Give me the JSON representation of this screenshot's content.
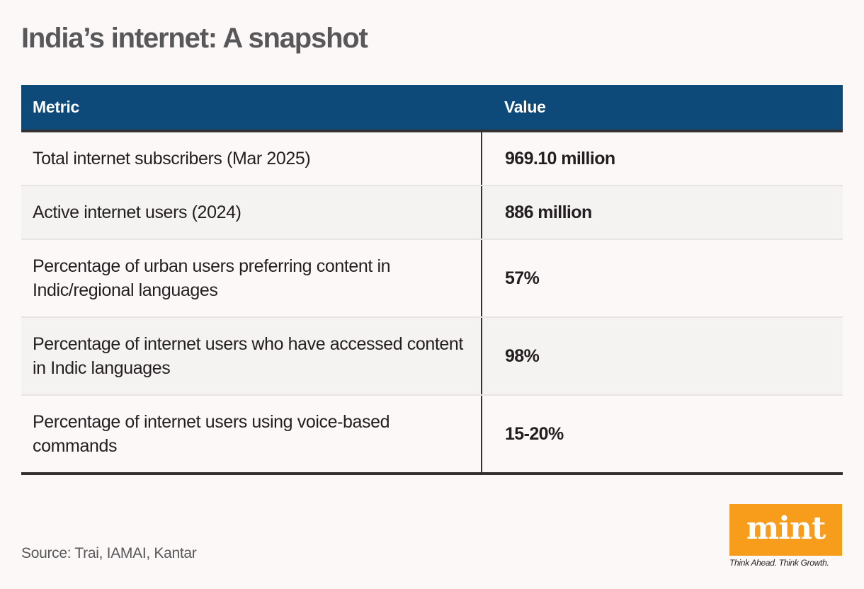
{
  "title": "India’s internet: A snapshot",
  "table": {
    "headers": {
      "metric": "Metric",
      "value": "Value"
    },
    "rows": [
      {
        "metric": "Total internet subscribers (Mar 2025)",
        "value": "969.10 million"
      },
      {
        "metric": "Active internet users (2024)",
        "value": "886 million"
      },
      {
        "metric": "Percentage of urban users preferring content in Indic/regional languages",
        "value": "57%"
      },
      {
        "metric": "Percentage of internet users who have accessed content in Indic languages",
        "value": "98%"
      },
      {
        "metric": "Percentage of internet users using voice-based commands",
        "value": "15-20%"
      }
    ]
  },
  "source": "Source: Trai, IAMAI, Kantar",
  "logo": {
    "word": "mint",
    "tagline": "Think Ahead. Think Growth.",
    "color": "#f89c1c"
  },
  "colors": {
    "header_bg": "#0d4a7a",
    "background": "#fdf8f8",
    "alt_row": "#f5f2f2",
    "title": "#58585a"
  }
}
